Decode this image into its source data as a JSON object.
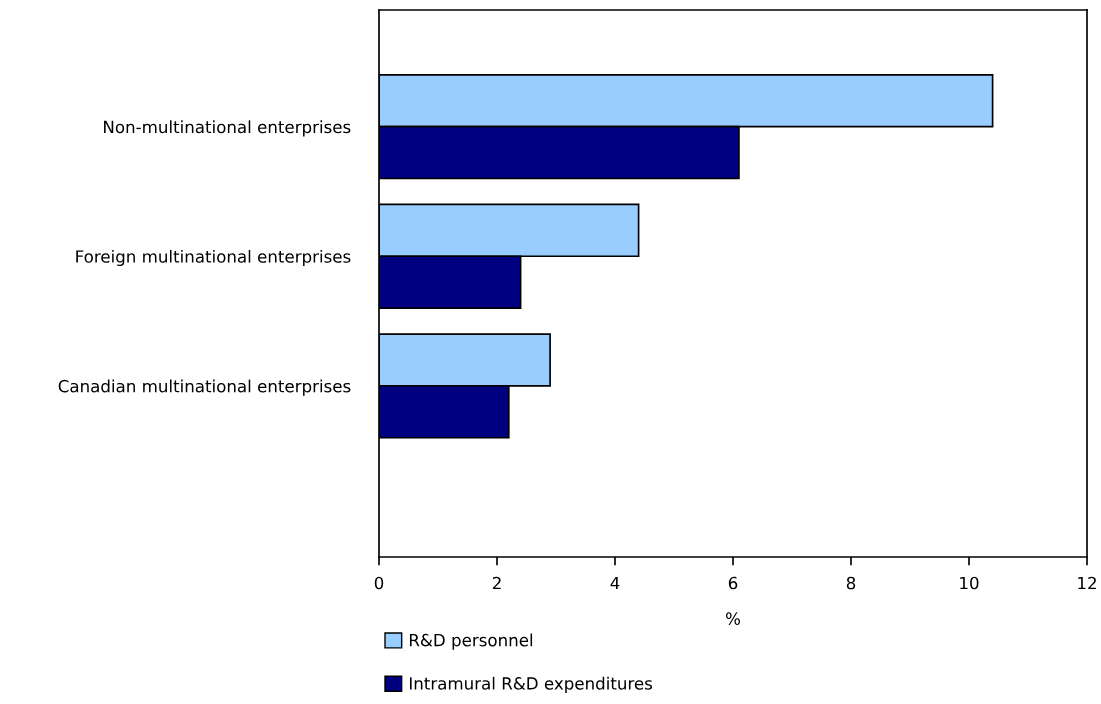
{
  "chart_data": {
    "type": "bar",
    "orientation": "horizontal",
    "xlabel": "%",
    "categories": [
      "Non-multinational enterprises",
      "Foreign multinational enterprises",
      "Canadian multinational enterprises"
    ],
    "series": [
      {
        "name": "R&D personnel",
        "color": "#99ccff",
        "values": [
          10.4,
          4.4,
          2.9
        ]
      },
      {
        "name": "Intramural R&D expenditures",
        "color": "#000080",
        "values": [
          6.1,
          2.4,
          2.2
        ]
      }
    ],
    "xlim": [
      0,
      12
    ],
    "xticks": [
      0,
      2,
      4,
      6,
      8,
      10,
      12
    ],
    "grid": false,
    "legend": "bottom"
  }
}
